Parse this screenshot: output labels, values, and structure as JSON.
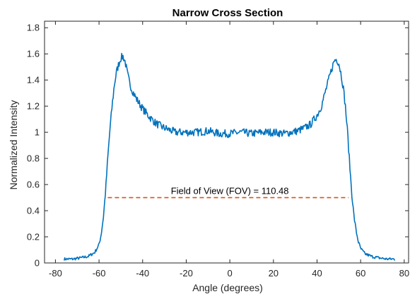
{
  "chart_data": {
    "type": "line",
    "title": "Narrow Cross Section",
    "xlabel": "Angle (degrees)",
    "ylabel": "Normalized Intensity",
    "xlim": [
      -85,
      82
    ],
    "ylim": [
      0,
      1.85
    ],
    "xticks": [
      -80,
      -60,
      -40,
      -20,
      0,
      20,
      40,
      60,
      80
    ],
    "yticks": [
      0,
      0.2,
      0.4,
      0.6,
      0.8,
      1,
      1.2,
      1.4,
      1.6,
      1.8
    ],
    "xtick_labels": [
      "-80",
      "-60",
      "-40",
      "-20",
      "0",
      "20",
      "40",
      "60",
      "80"
    ],
    "ytick_labels": [
      "0",
      "0.2",
      "0.4",
      "0.6",
      "0.8",
      "1",
      "1.2",
      "1.4",
      "1.6",
      "1.8"
    ],
    "grid": false,
    "series": [
      {
        "color": "#0072BD",
        "x": [
          -76,
          -72,
          -68,
          -65,
          -62,
          -60,
          -59,
          -58,
          -57,
          -56,
          -55,
          -54,
          -53,
          -52,
          -51,
          -50,
          -49,
          -48,
          -47,
          -46,
          -45,
          -43,
          -40,
          -37,
          -34,
          -31,
          -28,
          -25,
          -20,
          -15,
          -10,
          -5,
          0,
          5,
          10,
          15,
          20,
          25,
          28,
          31,
          34,
          37,
          40,
          42,
          44,
          45,
          46,
          47,
          48,
          49,
          50,
          51,
          52,
          53,
          54,
          55,
          56,
          57,
          58,
          59,
          60,
          62,
          65,
          68,
          72,
          76
        ],
        "y": [
          0.03,
          0.03,
          0.04,
          0.05,
          0.08,
          0.14,
          0.22,
          0.35,
          0.55,
          0.8,
          1.02,
          1.2,
          1.36,
          1.46,
          1.52,
          1.57,
          1.58,
          1.54,
          1.45,
          1.38,
          1.33,
          1.26,
          1.18,
          1.12,
          1.07,
          1.04,
          1.02,
          1.0,
          1.0,
          1.0,
          1.01,
          0.99,
          0.99,
          1.0,
          0.99,
          1.0,
          1.0,
          0.99,
          1.0,
          1.01,
          1.03,
          1.06,
          1.13,
          1.2,
          1.32,
          1.38,
          1.44,
          1.5,
          1.55,
          1.56,
          1.53,
          1.45,
          1.35,
          1.2,
          1.0,
          0.75,
          0.52,
          0.35,
          0.24,
          0.16,
          0.11,
          0.07,
          0.05,
          0.04,
          0.03,
          0.03
        ],
        "noise_amplitude": 0.03
      }
    ],
    "fov_line": {
      "color": "#D95319",
      "x": [
        -56,
        54.5
      ],
      "y": 0.5
    },
    "annotation": {
      "text": "Field of View (FOV) = 110.48",
      "x": 0,
      "y": 0.5
    }
  }
}
